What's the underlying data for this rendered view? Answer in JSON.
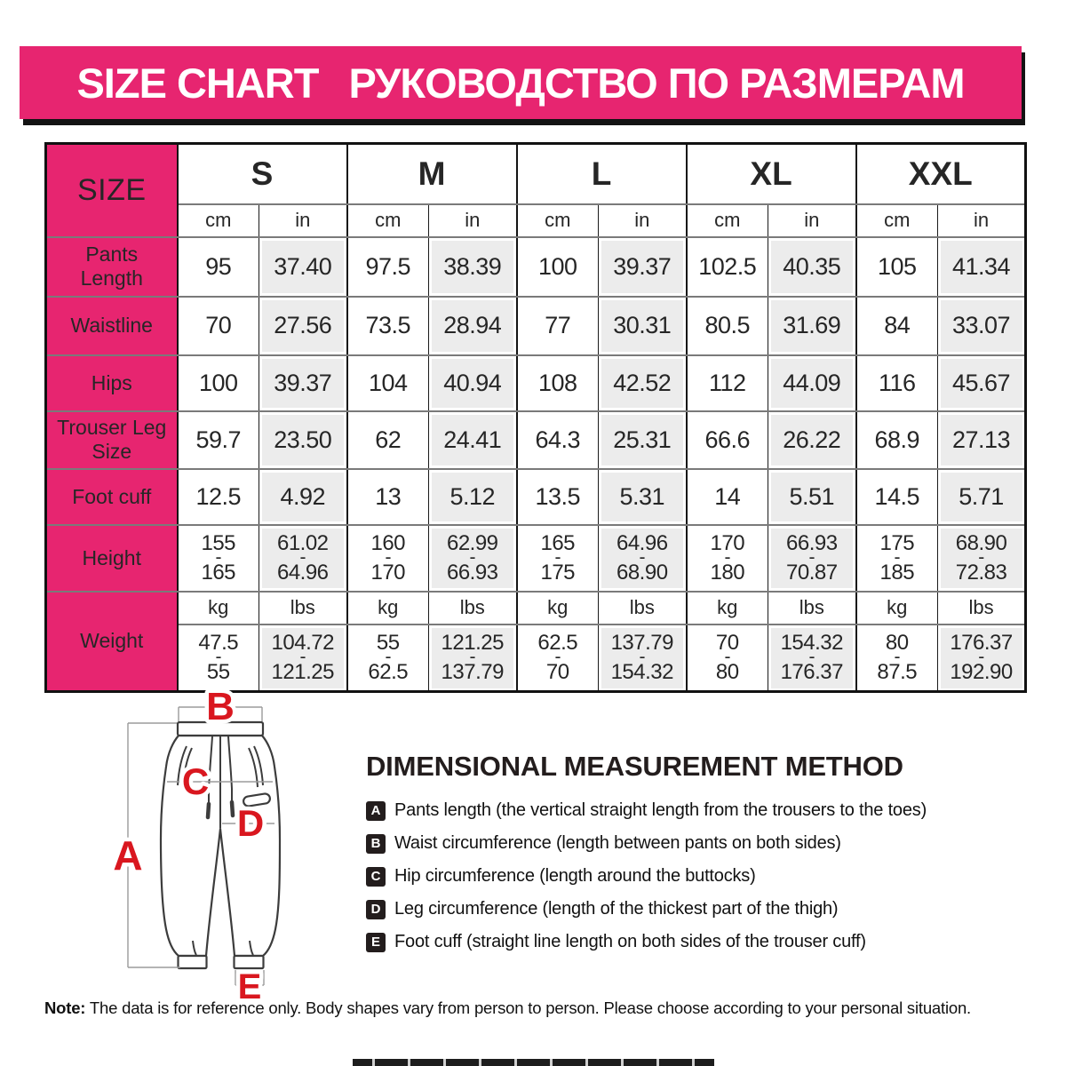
{
  "banner": {
    "title_en": "SIZE CHART",
    "title_ru": "РУКОВОДСТВО ПО РАЗМЕРАМ"
  },
  "colors": {
    "pink": "#E72570",
    "red": "#D9171F",
    "gray_cell": "#ECECEC"
  },
  "table": {
    "corner_label": "SIZE",
    "sizes": [
      "S",
      "M",
      "L",
      "XL",
      "XXL"
    ],
    "units": {
      "cm": "cm",
      "in": "in",
      "kg": "kg",
      "lbs": "lbs"
    },
    "rows": [
      {
        "label": "Pants Length",
        "values": [
          "95",
          "37.40",
          "97.5",
          "38.39",
          "100",
          "39.37",
          "102.5",
          "40.35",
          "105",
          "41.34"
        ]
      },
      {
        "label": "Waistline",
        "values": [
          "70",
          "27.56",
          "73.5",
          "28.94",
          "77",
          "30.31",
          "80.5",
          "31.69",
          "84",
          "33.07"
        ]
      },
      {
        "label": "Hips",
        "values": [
          "100",
          "39.37",
          "104",
          "40.94",
          "108",
          "42.52",
          "112",
          "44.09",
          "116",
          "45.67"
        ]
      },
      {
        "label": "Trouser Leg Size",
        "values": [
          "59.7",
          "23.50",
          "62",
          "24.41",
          "64.3",
          "25.31",
          "66.6",
          "26.22",
          "68.9",
          "27.13"
        ]
      },
      {
        "label": "Foot cuff",
        "values": [
          "12.5",
          "4.92",
          "13",
          "5.12",
          "13.5",
          "5.31",
          "14",
          "5.51",
          "14.5",
          "5.71"
        ]
      },
      {
        "label": "Height",
        "values": [
          "155|165",
          "61.02|64.96",
          "160|170",
          "62.99|66.93",
          "165|175",
          "64.96|68.90",
          "170|180",
          "66.93|70.87",
          "175|185",
          "68.90|72.83"
        ]
      }
    ],
    "weight_row": {
      "label": "Weight",
      "values": [
        "47.5|55",
        "104.72|121.25",
        "55|62.5",
        "121.25|137.79",
        "62.5|70",
        "137.79|154.32",
        "70|80",
        "154.32|176.37",
        "80|87.5",
        "176.37|192.90"
      ]
    }
  },
  "diagram": {
    "labels": {
      "A": "A",
      "B": "B",
      "C": "C",
      "D": "D",
      "E": "E"
    }
  },
  "method": {
    "heading": "DIMENSIONAL MEASUREMENT METHOD",
    "items": [
      {
        "key": "A",
        "text": "Pants length (the vertical straight length from the trousers to the toes)"
      },
      {
        "key": "B",
        "text": "Waist circumference (length between pants on both sides)"
      },
      {
        "key": "C",
        "text": "Hip circumference (length around the buttocks)"
      },
      {
        "key": "D",
        "text": "Leg circumference (length of the thickest part of the thigh)"
      },
      {
        "key": "E",
        "text": "Foot cuff (straight line length on both sides of the trouser cuff)"
      }
    ]
  },
  "note": {
    "bold": "Note:",
    "text": " The data is for reference only. Body shapes vary from person to person. Please choose according to your personal situation."
  }
}
